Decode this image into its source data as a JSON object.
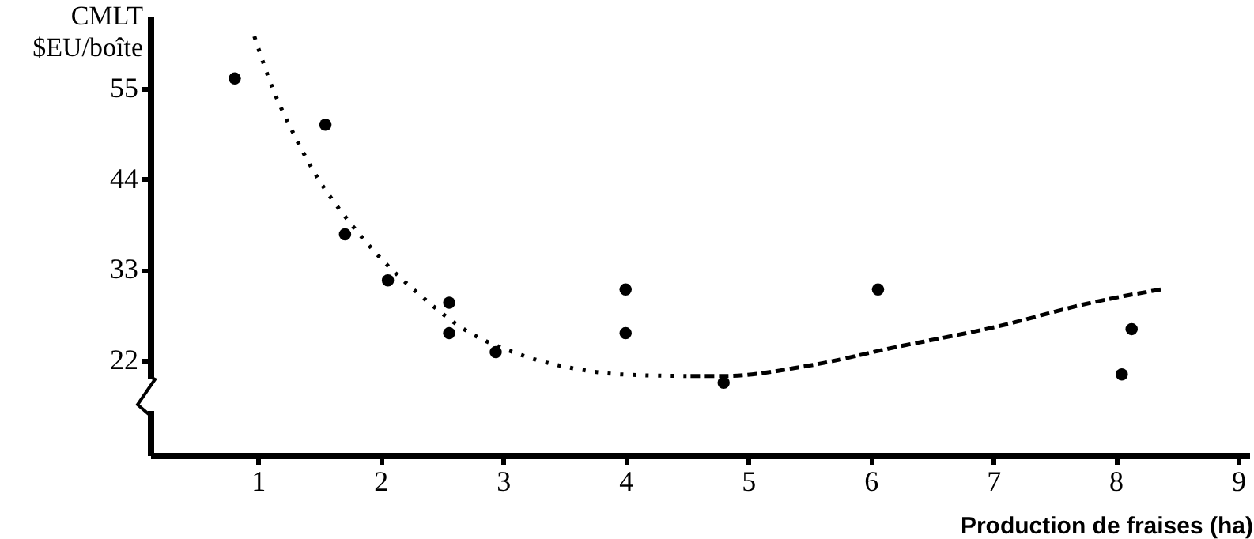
{
  "chart_data": {
    "type": "scatter",
    "xlabel": "Production de fraises (ha)",
    "ylabel": "CMLT\n$EU/boîte",
    "xlim": [
      0.12,
      9.09
    ],
    "ylim": [
      10.5,
      63.8
    ],
    "xticks": [
      1,
      2,
      3,
      4,
      5,
      6,
      7,
      8,
      9
    ],
    "yticks": [
      22,
      33,
      44,
      55
    ],
    "grid": false,
    "series": [
      {
        "color": "#000000",
        "marker": "circle",
        "x": [
          0.81,
          1.55,
          1.71,
          2.06,
          2.56,
          2.56,
          2.94,
          4.0,
          4.0,
          4.8,
          6.06,
          8.05,
          8.13
        ],
        "values": [
          56.2,
          50.6,
          37.3,
          31.7,
          29.0,
          25.3,
          23.0,
          30.6,
          25.3,
          19.3,
          30.6,
          20.3,
          25.8
        ]
      },
      {
        "type": "line",
        "line_style": "dotted",
        "marker": "none",
        "color": "#000000",
        "x": [
          0.97,
          1.13,
          1.26,
          1.48,
          1.74,
          2.02,
          2.34,
          2.68,
          3.12,
          3.59,
          3.97,
          4.53
        ],
        "values": [
          61.3,
          54.6,
          50.4,
          44.3,
          38.9,
          34.1,
          29.7,
          25.8,
          22.8,
          21.0,
          20.3,
          20.1
        ]
      },
      {
        "type": "line",
        "line_style": "dashed",
        "marker": "none",
        "color": "#000000",
        "x": [
          4.53,
          4.8,
          5.47,
          6.2,
          7.03,
          7.8,
          8.4
        ],
        "values": [
          20.1,
          20.1,
          21.3,
          23.6,
          26.1,
          29.0,
          30.7
        ]
      }
    ]
  }
}
